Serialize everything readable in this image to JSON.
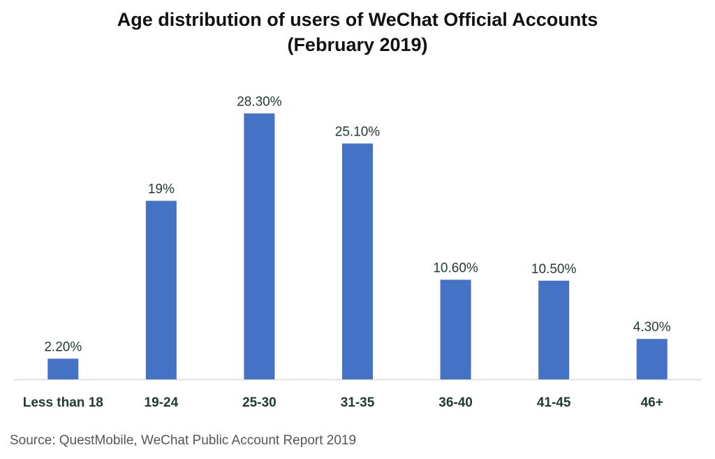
{
  "chart_data": {
    "type": "bar",
    "title": "Age distribution of users of WeChat Official Accounts (February 2019)",
    "categories": [
      "Less than 18",
      "19-24",
      "25-30",
      "31-35",
      "36-40",
      "41-45",
      "46+"
    ],
    "values": [
      2.2,
      19,
      28.3,
      25.1,
      10.6,
      10.5,
      4.3
    ],
    "data_labels": [
      "2.20%",
      "19%",
      "28.30%",
      "25.10%",
      "10.60%",
      "10.50%",
      "4.30%"
    ],
    "unit": "%",
    "xlabel": "",
    "ylabel": "",
    "ylim": [
      0,
      30
    ],
    "grid": false,
    "legend": "none",
    "bar_color": "#4472C4",
    "axis_color": "#D9D9D9",
    "label_color": "#1F3B2C"
  },
  "source": "Source: QuestMobile, WeChat Public Account Report 2019"
}
